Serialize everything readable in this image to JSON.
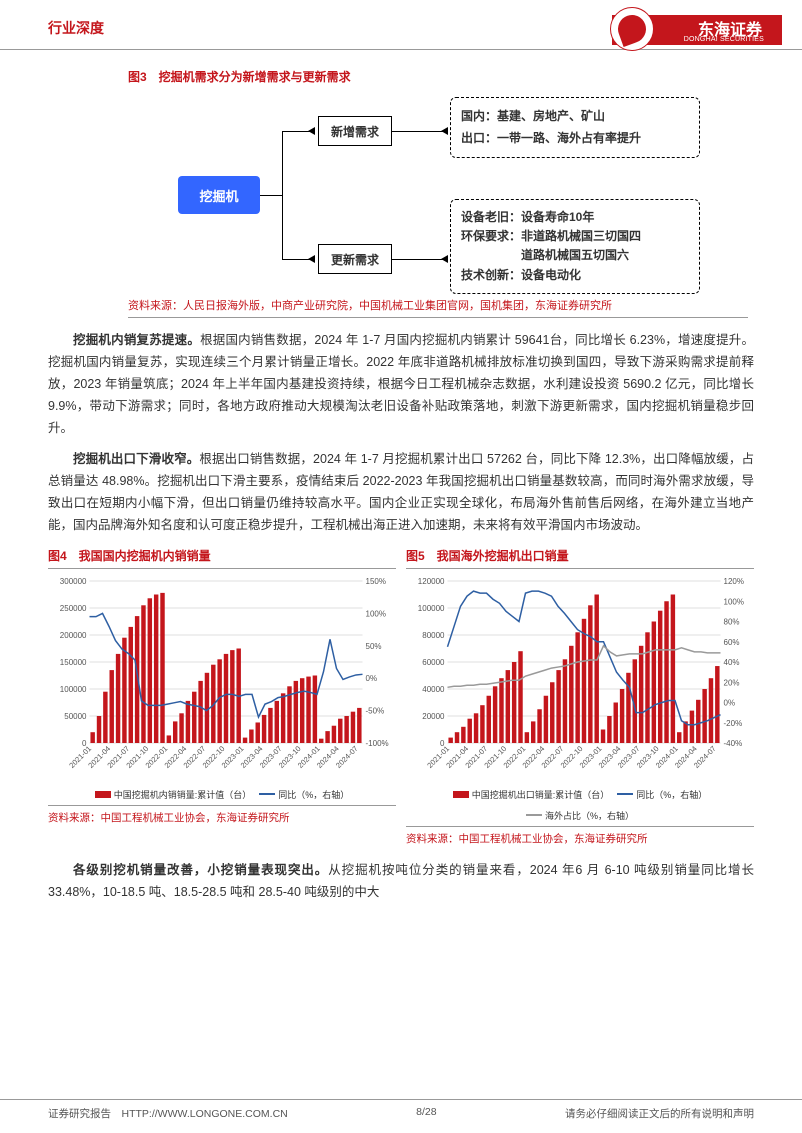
{
  "header": {
    "category": "行业深度",
    "brand_cn": "东海证券",
    "brand_en": "DONGHAI SECURITIES"
  },
  "fig3": {
    "title": "图3　挖掘机需求分为新增需求与更新需求",
    "root": "挖掘机",
    "child1": "新增需求",
    "child2": "更新需求",
    "leaf1_l1": "国内：基建、房地产、矿山",
    "leaf1_l2": "出口：一带一路、海外占有率提升",
    "leaf2_l1": "设备老旧：设备寿命10年",
    "leaf2_l2": "环保要求：非道路机械国三切国四",
    "leaf2_l2b": "道路机械国五切国六",
    "leaf2_l3": "技术创新：设备电动化",
    "source": "资料来源：人民日报海外版，中商产业研究院，中国机械工业集团官网，国机集团，东海证券研究所"
  },
  "para1": {
    "lead": "挖掘机内销复苏提速。",
    "body": "根据国内销售数据，2024 年 1-7 月国内挖掘机内销累计 59641台，同比增长 6.23%，增速度提升。挖掘机国内销量复苏，实现连续三个月累计销量正增长。2022 年底非道路机械排放标准切换到国四，导致下游采购需求提前释放，2023 年销量筑底；2024 年上半年国内基建投资持续，根据今日工程机械杂志数据，水利建设投资 5690.2 亿元，同比增长 9.9%，带动下游需求；同时，各地方政府推动大规模淘汰老旧设备补贴政策落地，刺激下游更新需求，国内挖掘机销量稳步回升。"
  },
  "para2": {
    "lead": "挖掘机出口下滑收窄。",
    "body": "根据出口销售数据，2024 年 1-7 月挖掘机累计出口 57262 台，同比下降 12.3%，出口降幅放缓，占总销量达 48.98%。挖掘机出口下滑主要系，疫情结束后 2022-2023 年我国挖掘机出口销量基数较高，而同时海外需求放缓，导致出口在短期内小幅下滑，但出口销量仍维持较高水平。国内企业正实现全球化，布局海外售前售后网络，在海外建立当地产能，国内品牌海外知名度和认可度正稳步提升，工程机械出海正进入加速期，未来将有效平滑国内市场波动。"
  },
  "fig4": {
    "title": "图4　我国国内挖掘机内销销量",
    "legend_bar": "中国挖掘机内销销量:累计值（台）",
    "legend_line": "同比（%，右轴）",
    "source": "资料来源：中国工程机械工业协会，东海证券研究所",
    "categories": [
      "2021-01",
      "2021-04",
      "2021-07",
      "2021-10",
      "2022-01",
      "2022-04",
      "2022-07",
      "2022-10",
      "2023-01",
      "2023-04",
      "2023-07",
      "2023-10",
      "2024-01",
      "2024-04",
      "2024-07"
    ],
    "bars": [
      20000,
      95000,
      165000,
      215000,
      255000,
      275000,
      14000,
      55000,
      95000,
      130000,
      155000,
      172000,
      10000,
      38000,
      65000,
      92000,
      115000,
      125000,
      8000,
      32000,
      50000,
      65000,
      82000,
      95000
    ],
    "x_full": [
      "2021-01",
      "",
      "",
      "2021-04",
      "",
      "",
      "2021-07",
      "",
      "",
      "2021-10",
      "",
      "",
      "2022-01",
      "",
      "",
      "2022-04",
      "",
      "",
      "2022-07",
      "",
      "",
      "2022-10",
      "",
      "",
      "2023-01",
      "",
      "",
      "2023-04",
      "",
      "",
      "2023-07",
      "",
      "",
      "2023-10",
      "",
      "",
      "2024-01",
      "",
      "",
      "2024-04",
      "",
      "",
      "2024-07"
    ],
    "line": [
      95,
      95,
      100,
      80,
      58,
      45,
      38,
      28,
      -35,
      -42,
      -42,
      -42,
      -40,
      -38,
      -36,
      -40,
      -42,
      -44,
      -50,
      -42,
      -30,
      -25,
      -25,
      -28,
      -25,
      -25,
      -60,
      -40,
      -36,
      -30,
      -28,
      -25,
      -22,
      -20,
      -22,
      -25,
      10,
      60,
      15,
      -2,
      2,
      5,
      6
    ],
    "yleft": {
      "min": 0,
      "max": 300000,
      "ticks": [
        0,
        50000,
        100000,
        150000,
        200000,
        250000,
        300000
      ]
    },
    "yright": {
      "min": -100,
      "max": 150,
      "ticks": [
        -100,
        -50,
        0,
        50,
        100,
        150
      ]
    },
    "bar_color": "#c4161c",
    "line_color": "#2e5fa3",
    "grid_color": "#bfbfbf"
  },
  "fig5": {
    "title": "图5　我国海外挖掘机出口销量",
    "legend_bar": "中国挖掘机出口销量:累计值（台）",
    "legend_line1": "同比（%，右轴）",
    "legend_line2": "海外占比（%，右轴）",
    "source": "资料来源：中国工程机械工业协会，东海证券研究所",
    "bars": [
      4000,
      12000,
      22000,
      35000,
      48000,
      60000,
      68000,
      8000,
      25000,
      45000,
      62000,
      82000,
      102000,
      110000,
      10000,
      30000,
      52000,
      72000,
      90000,
      105000,
      110000,
      8000,
      24000,
      40000,
      52000,
      57000
    ],
    "line1": [
      55,
      95,
      110,
      108,
      98,
      85,
      80,
      108,
      110,
      105,
      88,
      72,
      65,
      60,
      60,
      30,
      22,
      -10,
      -10,
      -2,
      0,
      2,
      -18,
      -22,
      -20,
      -15,
      -13,
      -12
    ],
    "line2": [
      15,
      16,
      17,
      18,
      20,
      22,
      22,
      26,
      30,
      34,
      36,
      40,
      42,
      42,
      56,
      46,
      48,
      48,
      48,
      52,
      52,
      52,
      54,
      50,
      50,
      49,
      49,
      49
    ],
    "yleft": {
      "min": 0,
      "max": 120000,
      "ticks": [
        0,
        20000,
        40000,
        60000,
        80000,
        100000,
        120000
      ]
    },
    "yright": {
      "min": -40,
      "max": 120,
      "ticks": [
        -40,
        -20,
        0,
        20,
        40,
        60,
        80,
        100,
        120
      ]
    },
    "bar_color": "#c4161c",
    "line1_color": "#2e5fa3",
    "line2_color": "#9a9a9a",
    "grid_color": "#bfbfbf"
  },
  "para3": {
    "lead": "各级别挖机销量改善，小挖销量表现突出。",
    "body": "从挖掘机按吨位分类的销量来看，2024 年6 月 6-10 吨级别销量同比增长 33.48%，10-18.5 吨、18.5-28.5 吨和 28.5-40 吨级别的中大"
  },
  "footer": {
    "left": "证券研究报告　HTTP://WWW.LONGONE.COM.CN",
    "center": "8/28",
    "right": "请务必仔细阅读正文后的所有说明和声明"
  }
}
